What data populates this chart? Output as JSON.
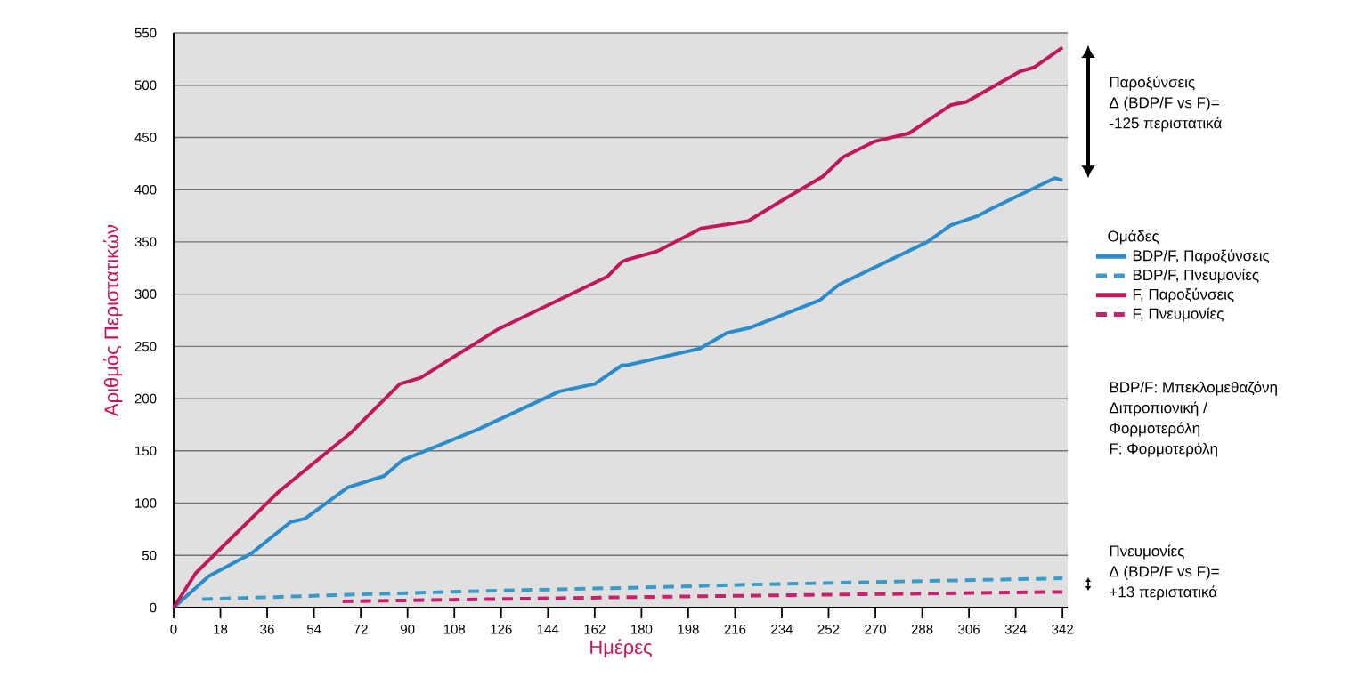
{
  "chart_data": {
    "type": "line",
    "xlabel": "Ημέρες",
    "ylabel": "Αριθμός Περιστατικών",
    "legend_title": "Ομάδες",
    "xlim": [
      0,
      344
    ],
    "ylim": [
      0,
      550
    ],
    "xticks": [
      0,
      18,
      36,
      54,
      72,
      90,
      108,
      126,
      144,
      162,
      180,
      198,
      216,
      234,
      252,
      270,
      288,
      306,
      324,
      342
    ],
    "yticks": [
      0,
      50,
      100,
      150,
      200,
      250,
      300,
      350,
      400,
      450,
      500,
      550
    ],
    "grid": "y",
    "legend": "right",
    "marker": "none",
    "annotations": [
      "Παροξύνσεις",
      "Δ (BDP/F vs F)=",
      "-125 περιστατικά",
      "BDP/F: Μπεκλομεθαζόνη",
      "Διπροπιονική /",
      "Φορμοτερόλη",
      "F: Φορμοτερόλη",
      "Πνευμονίες",
      "Δ (BDP/F vs F)=",
      "+13 περιστατικά"
    ],
    "series": [
      {
        "name": "BDP/F, Παροξύνσεις",
        "color": "#2b8ccc",
        "line_style": "solid",
        "x": [
          0,
          13.5,
          30,
          45,
          50.5,
          67,
          81,
          88,
          117.5,
          148.5,
          162,
          172.5,
          174.5,
          202.5,
          213,
          222,
          248.5,
          256,
          290,
          299,
          309.5,
          314,
          339,
          342
        ],
        "values": [
          0,
          30,
          52,
          82,
          85,
          115,
          126,
          141,
          171,
          207,
          214,
          232,
          232,
          248,
          263,
          268,
          294,
          309,
          350,
          366,
          375,
          381,
          411,
          409
        ]
      },
      {
        "name": "BDP/F, Πνευμονίες",
        "color": "#3a9bc8",
        "line_style": "dashed",
        "x": [
          11,
          63,
          120,
          176,
          222,
          280,
          342
        ],
        "values": [
          8,
          12,
          16,
          19,
          22,
          25,
          28
        ]
      },
      {
        "name": "F, Παροξύνσεις",
        "color": "#c2185b",
        "line_style": "solid",
        "x": [
          0,
          8.5,
          40,
          68.5,
          87,
          95,
          124.5,
          167,
          172.5,
          174.5,
          186,
          203,
          221,
          235,
          250,
          257.5,
          269.5,
          283,
          299,
          305,
          325.5,
          331,
          342
        ],
        "values": [
          0,
          33,
          110,
          168,
          214,
          220,
          266,
          317,
          331,
          333,
          341,
          363,
          370,
          391,
          413,
          431,
          446,
          454,
          481,
          484,
          513,
          517,
          536
        ]
      },
      {
        "name": "F, Πνευμονίες",
        "color": "#c8206a",
        "line_style": "dashed",
        "x": [
          65,
          120,
          176,
          240,
          342
        ],
        "values": [
          6,
          8,
          10,
          12,
          15
        ]
      }
    ]
  }
}
